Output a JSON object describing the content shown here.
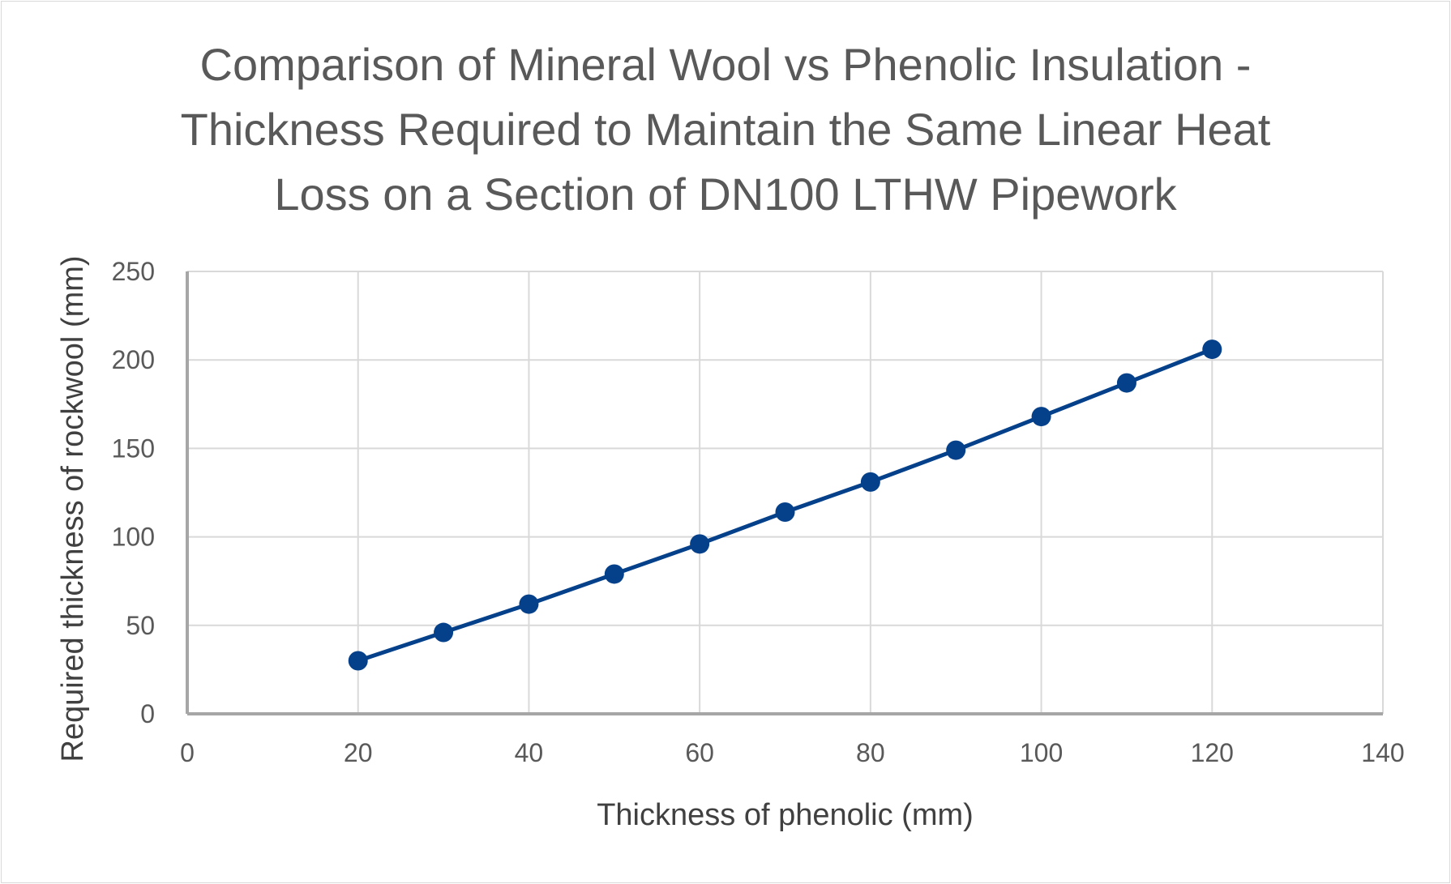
{
  "chart_data": {
    "type": "scatter",
    "title_lines": [
      "Comparison of Mineral Wool vs Phenolic Insulation -",
      "Thickness Required to Maintain the Same Linear Heat",
      "Loss on a Section of DN100 LTHW Pipework"
    ],
    "xlabel": "Thickness of phenolic (mm)",
    "ylabel": "Required thickness of rockwool (mm)",
    "xlim": [
      0,
      140
    ],
    "ylim": [
      0,
      250
    ],
    "x_ticks": [
      0,
      20,
      40,
      60,
      80,
      100,
      120,
      140
    ],
    "y_ticks": [
      0,
      50,
      100,
      150,
      200,
      250
    ],
    "grid": true,
    "legend": "none",
    "series": [
      {
        "x": [
          20,
          30,
          40,
          50,
          60,
          70,
          80,
          90,
          100,
          110,
          120
        ],
        "y": [
          30,
          46,
          62,
          79,
          96,
          114,
          131,
          149,
          168,
          187,
          206
        ],
        "color": "#05408a",
        "line": "straight with markers"
      }
    ]
  }
}
